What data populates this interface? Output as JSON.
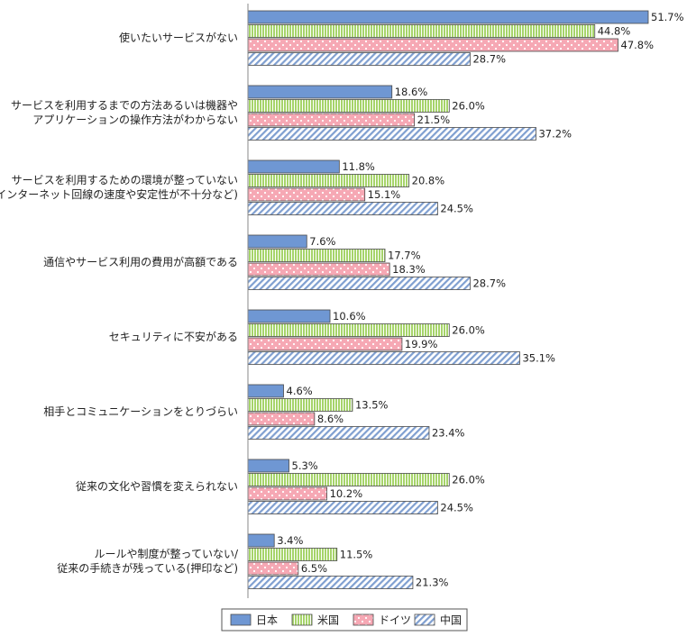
{
  "chart_data": {
    "type": "bar",
    "orientation": "horizontal",
    "categories": [
      [
        "使いたいサービスがない"
      ],
      [
        "サービスを利用するまでの方法あるいは機器や",
        "アプリケーションの操作方法がわからない"
      ],
      [
        "サービスを利用するための環境が整っていない",
        "(インターネット回線の速度や安定性が不十分など)"
      ],
      [
        "通信やサービス利用の費用が高額である"
      ],
      [
        "セキュリティに不安がある"
      ],
      [
        "相手とコミュニケーションをとりづらい"
      ],
      [
        "従来の文化や習慣を変えられない"
      ],
      [
        "ルールや制度が整っていない/",
        "従来の手続きが残っている(押印など)"
      ]
    ],
    "series": [
      {
        "name": "日本",
        "values": [
          51.7,
          18.6,
          11.8,
          7.6,
          10.6,
          4.6,
          5.3,
          3.4
        ],
        "labels": [
          "51.7%",
          "18.6%",
          "11.8%",
          "7.6%",
          "10.6%",
          "4.6%",
          "5.3%",
          "3.4%"
        ],
        "color": "#6f97d3",
        "pattern": "solid"
      },
      {
        "name": "米国",
        "values": [
          44.8,
          26.0,
          20.8,
          17.7,
          26.0,
          13.5,
          26.0,
          11.5
        ],
        "labels": [
          "44.8%",
          "26.0%",
          "20.8%",
          "17.7%",
          "26.0%",
          "13.5%",
          "26.0%",
          "11.5%"
        ],
        "color": "#a6d46a",
        "pattern": "vertical-stripes"
      },
      {
        "name": "ドイツ",
        "values": [
          47.8,
          21.5,
          15.1,
          18.3,
          19.9,
          8.6,
          10.2,
          6.5
        ],
        "labels": [
          "47.8%",
          "21.5%",
          "15.1%",
          "18.3%",
          "19.9%",
          "8.6%",
          "10.2%",
          "6.5%"
        ],
        "color": "#f6a8b4",
        "pattern": "dots"
      },
      {
        "name": "中国",
        "values": [
          28.7,
          37.2,
          24.5,
          28.7,
          35.1,
          23.4,
          24.5,
          21.3
        ],
        "labels": [
          "28.7%",
          "37.2%",
          "24.5%",
          "28.7%",
          "35.1%",
          "23.4%",
          "24.5%",
          "21.3%"
        ],
        "color": "#7f9fd0",
        "pattern": "diagonal-stripes"
      }
    ],
    "xlim": [
      0,
      51.7
    ],
    "grid": false,
    "legend_position": "bottom"
  }
}
